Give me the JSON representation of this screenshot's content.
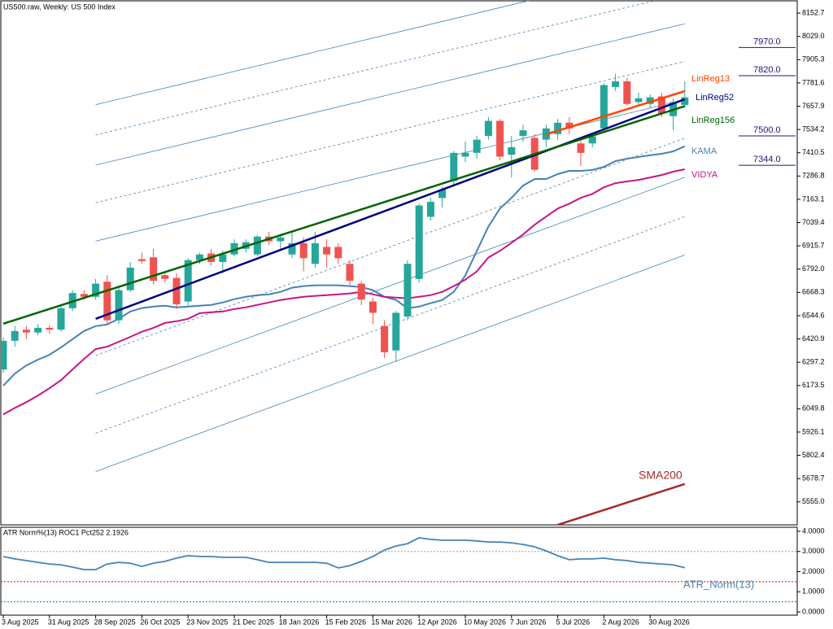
{
  "chart_data": [
    {
      "type": "candlestick",
      "title": "US500.raw, Weekly:  US 500 Index",
      "categories": [
        "3 Aug 2025",
        null,
        null,
        null,
        "31 Aug 2025",
        null,
        null,
        null,
        "28 Sep 2025",
        null,
        null,
        null,
        "26 Oct 2025",
        null,
        null,
        null,
        "23 Nov 2025",
        null,
        null,
        null,
        "21 Dec 2025",
        null,
        null,
        null,
        "18 Jan 2026",
        null,
        null,
        null,
        "15 Feb 2026",
        null,
        null,
        null,
        "15 Mar 2026",
        null,
        null,
        null,
        "12 Apr 2026",
        null,
        null,
        null,
        "10 May 2026",
        null,
        null,
        null,
        "7 Jun 2026",
        null,
        null,
        null,
        "5 Jul 2026",
        null,
        null,
        null,
        "2 Aug 2026",
        null,
        null,
        null,
        "30 Aug 2026",
        null,
        null,
        null
      ],
      "open": [
        6259,
        6411,
        6470,
        6455,
        6480,
        6470,
        6584,
        6660,
        6645,
        6725,
        6520,
        6680,
        6845,
        6855,
        6760,
        6745,
        6620,
        6840,
        6875,
        6830,
        6870,
        6900,
        6870,
        6965,
        6940,
        6870,
        6930,
        6820,
        6910,
        6910,
        6820,
        6715,
        6620,
        6490,
        6360,
        6540,
        6740,
        7070,
        7170,
        7260,
        7390,
        7410,
        7500,
        7580,
        7400,
        7500,
        7490,
        7480,
        7510,
        7570,
        7460,
        7460,
        7540,
        7760,
        7790,
        7680,
        7670,
        7710,
        7605,
        7665
      ],
      "high": [
        6430,
        6490,
        6490,
        6500,
        6495,
        6600,
        6680,
        6680,
        6740,
        6760,
        6700,
        6830,
        6880,
        6900,
        6780,
        6770,
        6850,
        6880,
        6900,
        6890,
        6950,
        6950,
        6975,
        6990,
        6980,
        6990,
        6960,
        6990,
        6950,
        6930,
        6840,
        6730,
        6640,
        6520,
        6570,
        6840,
        7140,
        7170,
        7230,
        7420,
        7470,
        7500,
        7600,
        7590,
        7500,
        7560,
        7510,
        7560,
        7590,
        7600,
        7480,
        7510,
        7780,
        7830,
        7810,
        7730,
        7720,
        7730,
        7700,
        7790
      ],
      "low": [
        6240,
        6380,
        6420,
        6440,
        6450,
        6460,
        6570,
        6630,
        6630,
        6500,
        6500,
        6670,
        6820,
        6710,
        6720,
        6580,
        6600,
        6820,
        6810,
        6770,
        6860,
        6880,
        6860,
        6920,
        6900,
        6850,
        6780,
        6800,
        6800,
        6820,
        6700,
        6600,
        6500,
        6320,
        6300,
        6520,
        6720,
        7050,
        7120,
        7230,
        7360,
        7380,
        7480,
        7370,
        7280,
        7470,
        7310,
        7440,
        7480,
        7510,
        7340,
        7440,
        7520,
        7740,
        7660,
        7660,
        7650,
        7600,
        7530,
        7650
      ],
      "close": [
        6411,
        6463,
        6455,
        6480,
        6470,
        6584,
        6665,
        6645,
        6715,
        6520,
        6680,
        6800,
        6835,
        6730,
        6740,
        6605,
        6840,
        6870,
        6830,
        6870,
        6930,
        6935,
        6965,
        6940,
        6960,
        6930,
        6850,
        6930,
        6870,
        6850,
        6730,
        6630,
        6560,
        6350,
        6560,
        6820,
        7130,
        7150,
        7215,
        7410,
        7410,
        7480,
        7580,
        7390,
        7440,
        7530,
        7320,
        7540,
        7570,
        7540,
        7410,
        7497,
        7770,
        7790,
        7670,
        7700,
        7705,
        7620,
        7680,
        7705
      ],
      "up_color": "#26a69a",
      "down_color": "#ef5350",
      "ylim": [
        5433,
        8218
      ],
      "yticks": [
        8152.7,
        {
          "value": 8029,
          "label": "8029.0"
        },
        7905.3,
        7781.6,
        7657.9,
        7534.2,
        7410.5,
        7286.8,
        7163.1,
        7039.4,
        6915.7,
        {
          "value": 6792,
          "label": "6792.0"
        },
        6668.3,
        6544.6,
        6420.9,
        6297.2,
        6173.5,
        6049.8,
        5926.1,
        5802.4,
        5678.7,
        {
          "value": 5555,
          "label": "5555.0"
        }
      ],
      "series": [
        {
          "name": "KAMA",
          "color": "#4682b4",
          "values": [
            6172,
            6237,
            6280,
            6311,
            6337,
            6376,
            6420,
            6463,
            6489,
            6498,
            6528,
            6567,
            6585,
            6593,
            6597,
            6589,
            6593,
            6597,
            6602,
            6615,
            6632,
            6645,
            6654,
            6658,
            6671,
            6693,
            6702,
            6706,
            6706,
            6706,
            6702,
            6697,
            6680,
            6645,
            6628,
            6584,
            6593,
            6611,
            6628,
            6671,
            6758,
            6889,
            7019,
            7114,
            7171,
            7236,
            7271,
            7271,
            7297,
            7314,
            7314,
            7319,
            7336,
            7366,
            7379,
            7388,
            7397,
            7405,
            7418,
            7445
          ]
        },
        {
          "name": "VIDYA",
          "color": "#c71585",
          "values": [
            6020,
            6054,
            6085,
            6120,
            6159,
            6202,
            6259,
            6315,
            6367,
            6380,
            6406,
            6432,
            6459,
            6480,
            6506,
            6515,
            6528,
            6558,
            6563,
            6567,
            6580,
            6589,
            6602,
            6615,
            6628,
            6637,
            6645,
            6650,
            6654,
            6658,
            6663,
            6671,
            6658,
            6645,
            6641,
            6637,
            6645,
            6654,
            6671,
            6702,
            6736,
            6780,
            6854,
            6889,
            6932,
            6976,
            7028,
            7071,
            7114,
            7140,
            7171,
            7192,
            7227,
            7249,
            7258,
            7266,
            7279,
            7292,
            7310,
            7323
          ]
        }
      ],
      "trend_lines": [
        {
          "name": "LinReg13",
          "color": "#ff4500",
          "x": [
            47,
            59
          ],
          "values": [
            7508,
            7738
          ]
        },
        {
          "name": "LinReg52",
          "color": "#000080",
          "x": [
            8,
            59
          ],
          "values": [
            6528,
            7695
          ]
        },
        {
          "name": "LinReg156",
          "color": "#006400",
          "x": [
            0,
            59
          ],
          "values": [
            6502,
            7658
          ]
        },
        {
          "name": "SMA200",
          "color": "#a52a2a",
          "x": [
            48,
            59
          ],
          "values": [
            5433,
            5650
          ]
        }
      ],
      "channel_color": "#4682b4",
      "channel_lines": [
        {
          "style": "solid",
          "x": [
            8,
            59
          ],
          "values": [
            7666,
            8418
          ]
        },
        {
          "style": "dashed",
          "x": [
            8,
            59
          ],
          "values": [
            7505,
            8257
          ]
        },
        {
          "style": "solid",
          "x": [
            8,
            59
          ],
          "values": [
            7345,
            8096
          ]
        },
        {
          "style": "dashed",
          "x": [
            8,
            59
          ],
          "values": [
            7145,
            7896
          ]
        },
        {
          "style": "solid",
          "x": [
            8,
            59
          ],
          "values": [
            6941,
            7692
          ]
        },
        {
          "style": "dashed",
          "x": [
            8,
            59
          ],
          "values": [
            6333,
            7488
          ]
        },
        {
          "style": "solid",
          "x": [
            8,
            59
          ],
          "values": [
            6128,
            7280
          ]
        },
        {
          "style": "dashed",
          "x": [
            8,
            59
          ],
          "values": [
            5920,
            7071
          ]
        },
        {
          "style": "solid",
          "x": [
            8,
            59
          ],
          "values": [
            5716,
            6867
          ]
        }
      ],
      "levels": [
        {
          "value": 7970,
          "label": "7970.0"
        },
        {
          "value": 7820,
          "label": "7820.0"
        },
        {
          "value": 7500,
          "label": "7500.0"
        },
        {
          "value": 7344,
          "label": "7344.0"
        }
      ],
      "level_color": "#191970"
    },
    {
      "type": "line",
      "title": "ATR Norm%(13) ROC1 Pct252 2.1926",
      "series": [
        {
          "name": "ATR_Norm(13)",
          "color": "#4682b4",
          "values": [
            2.75,
            2.63,
            2.55,
            2.46,
            2.38,
            2.34,
            2.22,
            2.1,
            2.1,
            2.38,
            2.46,
            2.42,
            2.26,
            2.42,
            2.51,
            2.67,
            2.79,
            2.75,
            2.75,
            2.71,
            2.71,
            2.71,
            2.59,
            2.46,
            2.46,
            2.46,
            2.46,
            2.46,
            2.42,
            2.18,
            2.3,
            2.51,
            2.75,
            3.07,
            3.27,
            3.39,
            3.68,
            3.6,
            3.56,
            3.56,
            3.56,
            3.52,
            3.47,
            3.47,
            3.43,
            3.35,
            3.23,
            3.03,
            2.79,
            2.59,
            2.63,
            2.63,
            2.67,
            2.59,
            2.55,
            2.46,
            2.42,
            2.38,
            2.34,
            2.1926
          ]
        }
      ],
      "ylim": [
        -0.16,
        4.2
      ],
      "yticks": [
        {
          "value": 4,
          "label": "4.0000"
        },
        {
          "value": 3,
          "label": "3.0000"
        },
        {
          "value": 2,
          "label": "2.0000"
        },
        {
          "value": 1,
          "label": "1.0000"
        },
        {
          "value": 0,
          "label": "0.0000"
        }
      ],
      "levels": [
        {
          "value": 3,
          "color": "#a0a0a0"
        },
        {
          "value": 1.5,
          "color": "#ff0000"
        },
        {
          "value": 0.5,
          "color": "#00a000"
        }
      ]
    }
  ]
}
